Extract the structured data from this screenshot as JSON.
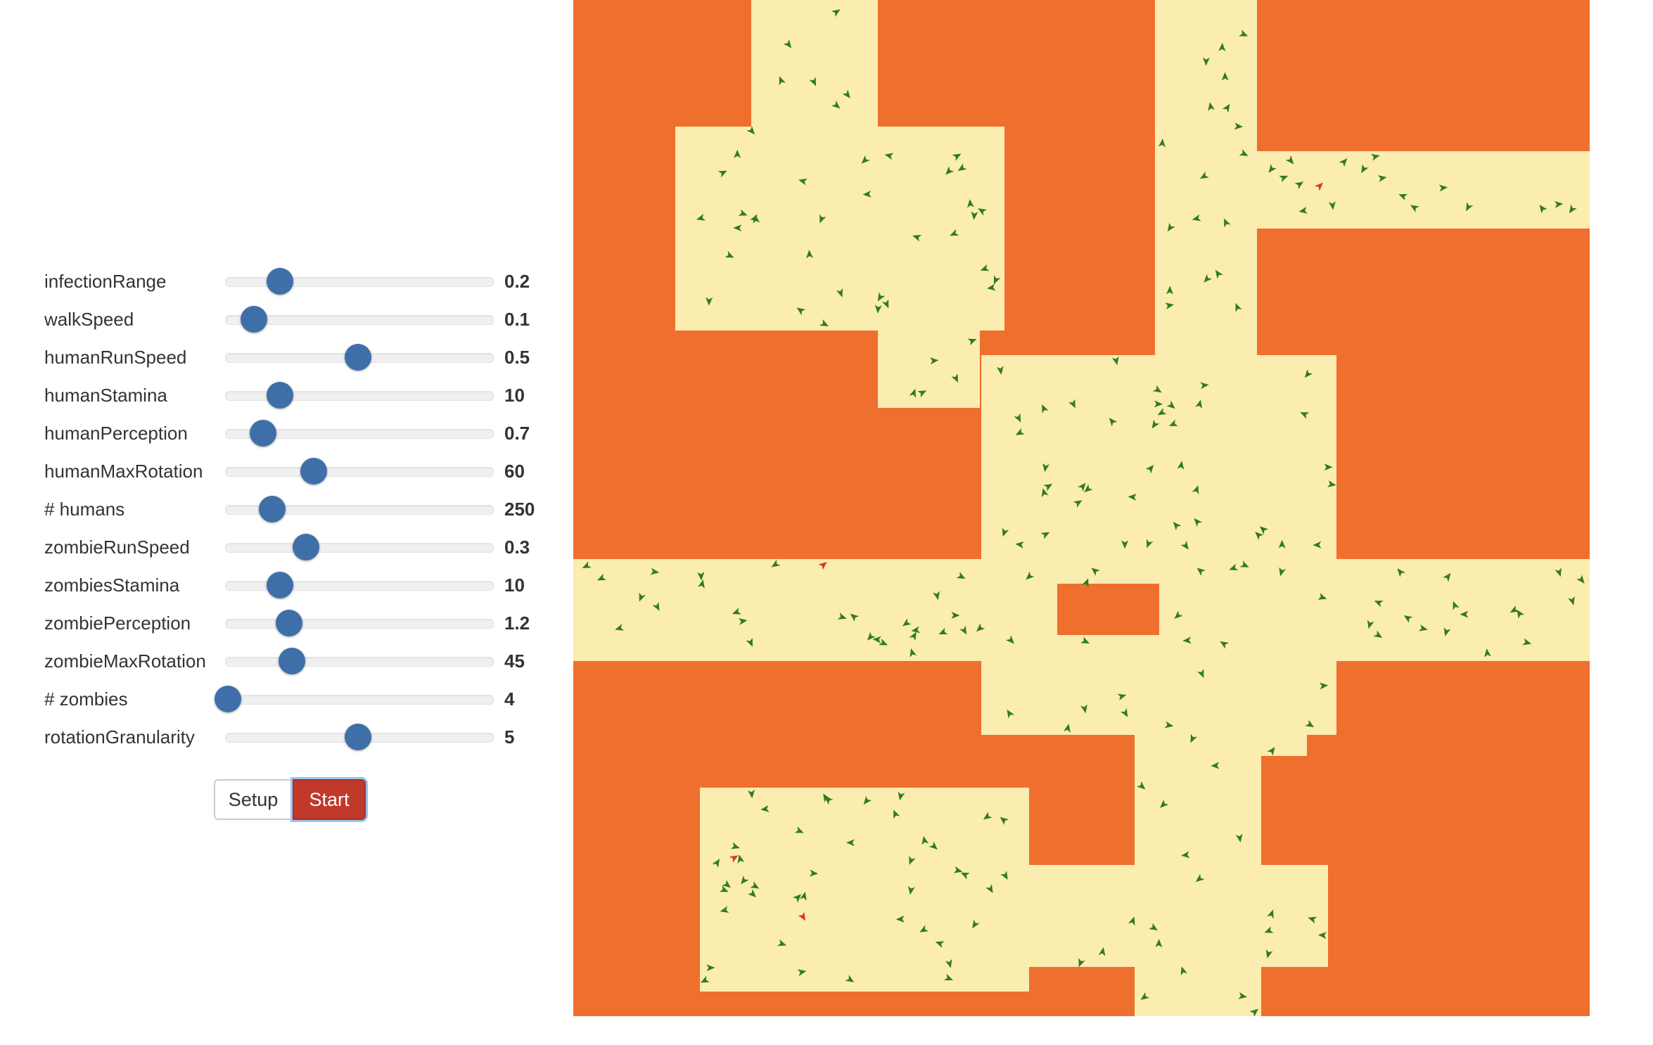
{
  "controls": {
    "sliders": [
      {
        "label": "infectionRange",
        "value": "0.2",
        "fraction": 0.2
      },
      {
        "label": "walkSpeed",
        "value": "0.1",
        "fraction": 0.1
      },
      {
        "label": "humanRunSpeed",
        "value": "0.5",
        "fraction": 0.5
      },
      {
        "label": "humanStamina",
        "value": "10",
        "fraction": 0.2
      },
      {
        "label": "humanPerception",
        "value": "0.7",
        "fraction": 0.135
      },
      {
        "label": "humanMaxRotation",
        "value": "60",
        "fraction": 0.33
      },
      {
        "label": "# humans",
        "value": "250",
        "fraction": 0.17
      },
      {
        "label": "zombieRunSpeed",
        "value": "0.3",
        "fraction": 0.3
      },
      {
        "label": "zombiesStamina",
        "value": "10",
        "fraction": 0.2
      },
      {
        "label": "zombiePerception",
        "value": "1.2",
        "fraction": 0.235
      },
      {
        "label": "zombieMaxRotation",
        "value": "45",
        "fraction": 0.245
      },
      {
        "label": "# zombies",
        "value": "4",
        "fraction": 0.0
      },
      {
        "label": "rotationGranularity",
        "value": "5",
        "fraction": 0.5
      }
    ],
    "setup_label": "Setup",
    "start_label": "Start"
  },
  "world": {
    "colors": {
      "wall": "#ef6f2e",
      "street": "#fbecb0",
      "human": "#2e7d1f",
      "zombie": "#d63a2a"
    },
    "human_count": 250,
    "zombie_count": 4
  }
}
